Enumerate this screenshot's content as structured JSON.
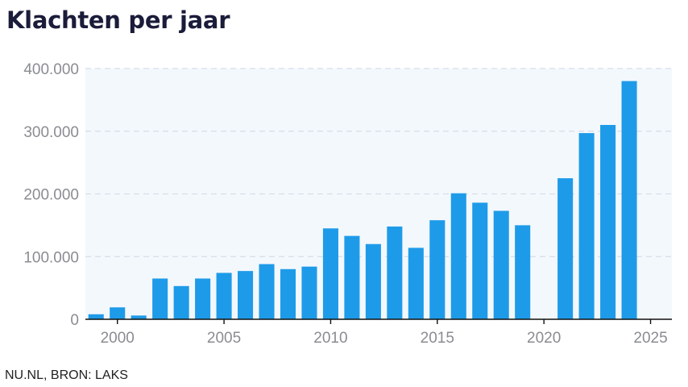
{
  "title": "Klachten per jaar",
  "source": "NU.NL, BRON: LAKS",
  "colors": {
    "bar": "#1e9be8",
    "plot_background": "#f3f8fd",
    "gridline": "#d5dde6",
    "axis": "#111111",
    "tick_text": "#8a8c92",
    "title_text": "#1b1c3a"
  },
  "chart_data": {
    "type": "bar",
    "title": "Klachten per jaar",
    "xlabel": "",
    "ylabel": "",
    "x": [
      1999,
      2000,
      2001,
      2002,
      2003,
      2004,
      2005,
      2006,
      2007,
      2008,
      2009,
      2010,
      2011,
      2012,
      2013,
      2014,
      2015,
      2016,
      2017,
      2018,
      2019,
      2021,
      2022,
      2023,
      2024
    ],
    "values": [
      8000,
      19000,
      6000,
      65000,
      53000,
      65000,
      74000,
      77000,
      88000,
      80000,
      84000,
      145000,
      133000,
      120000,
      148000,
      114000,
      158000,
      201000,
      186000,
      173000,
      150000,
      225000,
      297000,
      310000,
      380000
    ],
    "xlim": [
      1998.5,
      2026
    ],
    "ylim": [
      0,
      400000
    ],
    "x_ticks": [
      2000,
      2005,
      2010,
      2015,
      2020,
      2025
    ],
    "x_tick_labels": [
      "2000",
      "2005",
      "2010",
      "2015",
      "2020",
      "2025"
    ],
    "y_ticks": [
      0,
      100000,
      200000,
      300000,
      400000
    ],
    "y_tick_labels": [
      "0",
      "100.000",
      "200.000",
      "300.000",
      "400.000"
    ],
    "grid": "horizontal dashed",
    "legend": "none"
  }
}
